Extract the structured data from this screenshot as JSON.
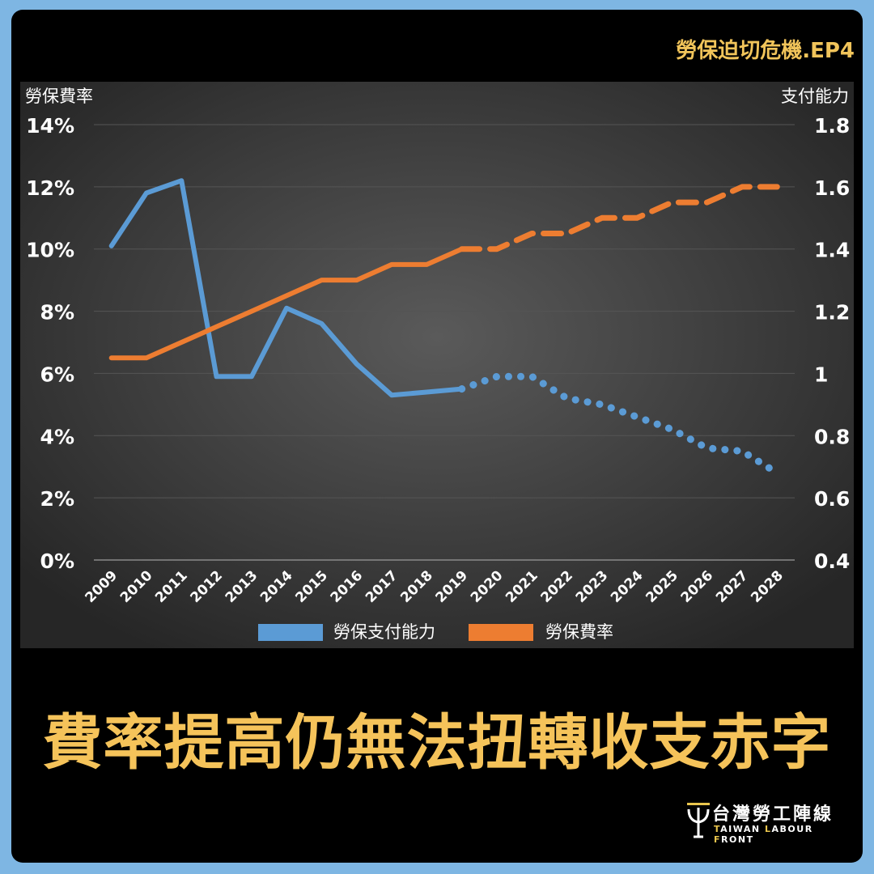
{
  "tag": "勞保迫切危機.EP4",
  "headline": "費率提高仍無法扭轉收支赤字",
  "logo": {
    "name_cn": "台灣勞工陣線",
    "name_en": "TAIWAN LABOUR FRONT"
  },
  "chart_data": {
    "type": "line",
    "x": [
      "2009",
      "2010",
      "2011",
      "2012",
      "2013",
      "2014",
      "2015",
      "2016",
      "2017",
      "2018",
      "2019",
      "2020",
      "2021",
      "2022",
      "2023",
      "2024",
      "2025",
      "2026",
      "2027",
      "2028"
    ],
    "ylabel_left": "勞保費率",
    "ylabel_right": "支付能力",
    "ylim_left": [
      0,
      14
    ],
    "ylim_right": [
      0.4,
      1.8
    ],
    "left_ticks": [
      "0%",
      "2%",
      "4%",
      "6%",
      "8%",
      "10%",
      "12%",
      "14%"
    ],
    "right_ticks": [
      "0.4",
      "0.6",
      "0.8",
      "1",
      "1.2",
      "1.4",
      "1.6",
      "1.8"
    ],
    "grid": true,
    "legend": "bottom",
    "series": [
      {
        "name": "勞保支付能力",
        "axis": "right",
        "color": "#5b9bd5",
        "values": [
          1.41,
          1.58,
          1.62,
          0.99,
          0.99,
          1.21,
          1.16,
          1.03,
          0.93,
          0.94,
          0.95,
          0.99,
          0.99,
          0.92,
          0.9,
          0.86,
          0.82,
          0.76,
          0.75,
          0.68
        ],
        "actual_through": "2019",
        "projection_style": "dotted"
      },
      {
        "name": "勞保費率",
        "axis": "left",
        "color": "#ed7d31",
        "values": [
          6.5,
          6.5,
          7.0,
          7.5,
          8.0,
          8.5,
          9.0,
          9.0,
          9.5,
          9.5,
          10.0,
          10.0,
          10.5,
          10.5,
          11.0,
          11.0,
          11.5,
          11.5,
          12.0,
          12.0
        ],
        "actual_through": "2019",
        "projection_style": "dashed"
      }
    ]
  }
}
